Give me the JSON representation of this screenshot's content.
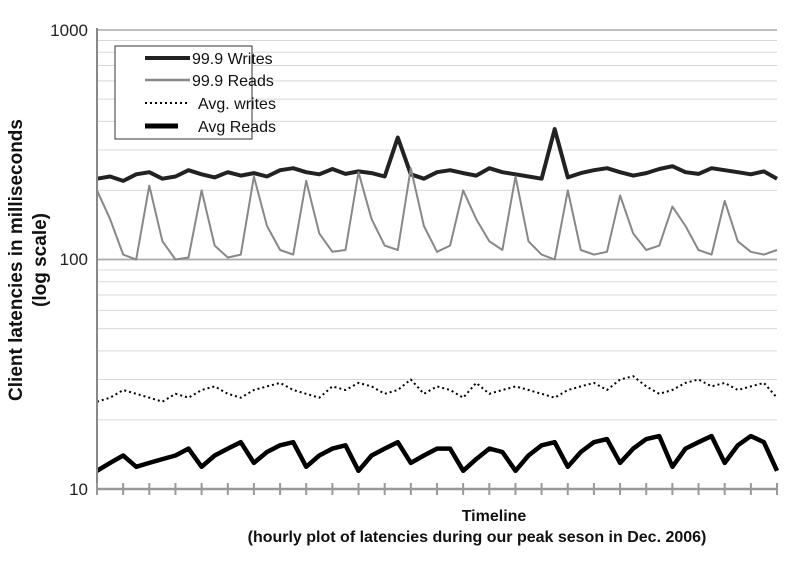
{
  "chart_data": {
    "type": "line",
    "title": "",
    "xlabel": "Timeline",
    "xlabel_sub": "(hourly plot of latencies during our peak seson in Dec. 2006)",
    "ylabel": "Client latencies in milliseconds",
    "ylabel_sub": "(log scale)",
    "yscale": "log",
    "ylim": [
      10,
      1000
    ],
    "yticks": [
      "1000",
      "100",
      "10"
    ],
    "ytick_values": [
      1000,
      100,
      10
    ],
    "x_tick_count": 27,
    "grid": true,
    "legend_position": "top-left",
    "series": [
      {
        "name": "99.9 Writes",
        "color": "#222222",
        "style": "thick-solid",
        "values": [
          225,
          230,
          220,
          235,
          240,
          225,
          230,
          245,
          235,
          228,
          240,
          232,
          238,
          230,
          245,
          250,
          240,
          235,
          248,
          236,
          242,
          238,
          230,
          340,
          235,
          225,
          240,
          245,
          238,
          232,
          250,
          240,
          235,
          230,
          225,
          370,
          228,
          238,
          245,
          250,
          240,
          232,
          238,
          248,
          255,
          240,
          236,
          250,
          245,
          240,
          235,
          242,
          225
        ]
      },
      {
        "name": "99.9 Reads",
        "color": "#888888",
        "style": "solid",
        "values": [
          200,
          150,
          105,
          100,
          210,
          120,
          100,
          102,
          200,
          115,
          102,
          105,
          230,
          140,
          110,
          105,
          220,
          130,
          108,
          110,
          240,
          150,
          115,
          110,
          250,
          140,
          108,
          115,
          200,
          150,
          120,
          110,
          230,
          120,
          105,
          100,
          200,
          110,
          105,
          108,
          190,
          130,
          110,
          115,
          170,
          140,
          110,
          105,
          180,
          120,
          108,
          105,
          110
        ]
      },
      {
        "name": "Avg. writes",
        "color": "#000000",
        "style": "dotted",
        "values": [
          24,
          25,
          27,
          26,
          25,
          24,
          26,
          25,
          27,
          28,
          26,
          25,
          27,
          28,
          29,
          27,
          26,
          25,
          28,
          27,
          29,
          28,
          26,
          27,
          30,
          26,
          28,
          27,
          25,
          29,
          26,
          27,
          28,
          27,
          26,
          25,
          27,
          28,
          29,
          27,
          30,
          31,
          28,
          26,
          27,
          29,
          30,
          28,
          29,
          27,
          28,
          29,
          25
        ]
      },
      {
        "name": "Avg Reads",
        "color": "#000000",
        "style": "thick-solid",
        "values": [
          12,
          13,
          14,
          12.5,
          13,
          13.5,
          14,
          15,
          12.5,
          14,
          15,
          16,
          13,
          14.5,
          15.5,
          16,
          12.5,
          14,
          15,
          15.5,
          12,
          14,
          15,
          16,
          13,
          14,
          15,
          15,
          12,
          13.5,
          15,
          14.5,
          12,
          14,
          15.5,
          16,
          12.5,
          14.5,
          16,
          16.5,
          13,
          15,
          16.5,
          17,
          12.5,
          15,
          16,
          17,
          13,
          15.5,
          17,
          16,
          12
        ]
      }
    ]
  }
}
